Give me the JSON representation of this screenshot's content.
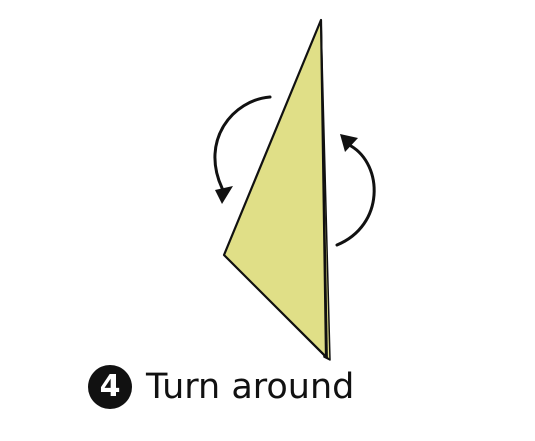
{
  "step": {
    "number": "4",
    "label": "Turn around"
  },
  "colors": {
    "paper_fill": "#e0df87",
    "outline": "#111111",
    "background": "#ffffff"
  },
  "icons": {
    "rotation_arrows": "curved-arrows-turn-over-icon"
  }
}
